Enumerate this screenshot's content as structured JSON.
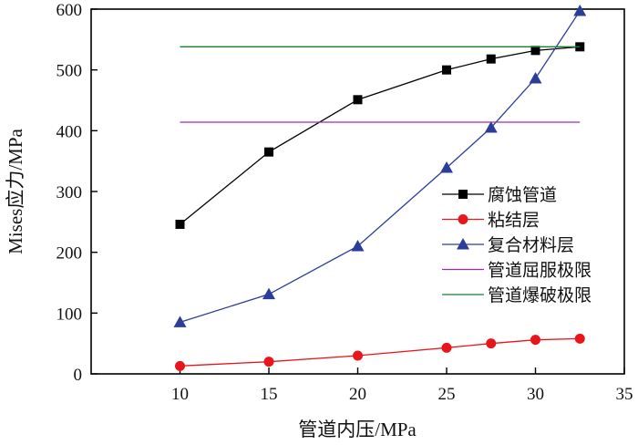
{
  "chart_data": {
    "type": "line",
    "xlabel": "管道内压/MPa",
    "ylabel": "Mises应力/MPa",
    "xlim": [
      5,
      35
    ],
    "ylim": [
      0,
      600
    ],
    "x_ticks": [
      10,
      15,
      20,
      25,
      30,
      35
    ],
    "y_ticks": [
      0,
      100,
      200,
      300,
      400,
      500,
      600
    ],
    "legend_position": "right",
    "series": [
      {
        "name": "腐蚀管道",
        "color": "#000000",
        "marker": "square",
        "x": [
          10,
          15,
          20,
          25,
          27.5,
          30,
          32.5
        ],
        "y": [
          246,
          365,
          451,
          500,
          518,
          532,
          538
        ]
      },
      {
        "name": "粘结层",
        "color": "#e8161b",
        "marker": "circle",
        "x": [
          10,
          15,
          20,
          25,
          27.5,
          30,
          32.5
        ],
        "y": [
          13,
          20,
          30,
          43,
          50,
          56,
          58
        ]
      },
      {
        "name": "复合材料层",
        "color": "#2a3d9a",
        "marker": "triangle",
        "x": [
          10,
          15,
          20,
          25,
          27.5,
          30,
          32.5
        ],
        "y": [
          85,
          131,
          210,
          339,
          405,
          486,
          597
        ]
      },
      {
        "name": "管道屈服极限",
        "color": "#9b2fb0",
        "marker": "none",
        "x": [
          10,
          32.5
        ],
        "y": [
          414,
          414
        ]
      },
      {
        "name": "管道爆破极限",
        "color": "#1c7a2a",
        "marker": "none",
        "x": [
          10,
          32.5
        ],
        "y": [
          538,
          538
        ]
      }
    ]
  }
}
